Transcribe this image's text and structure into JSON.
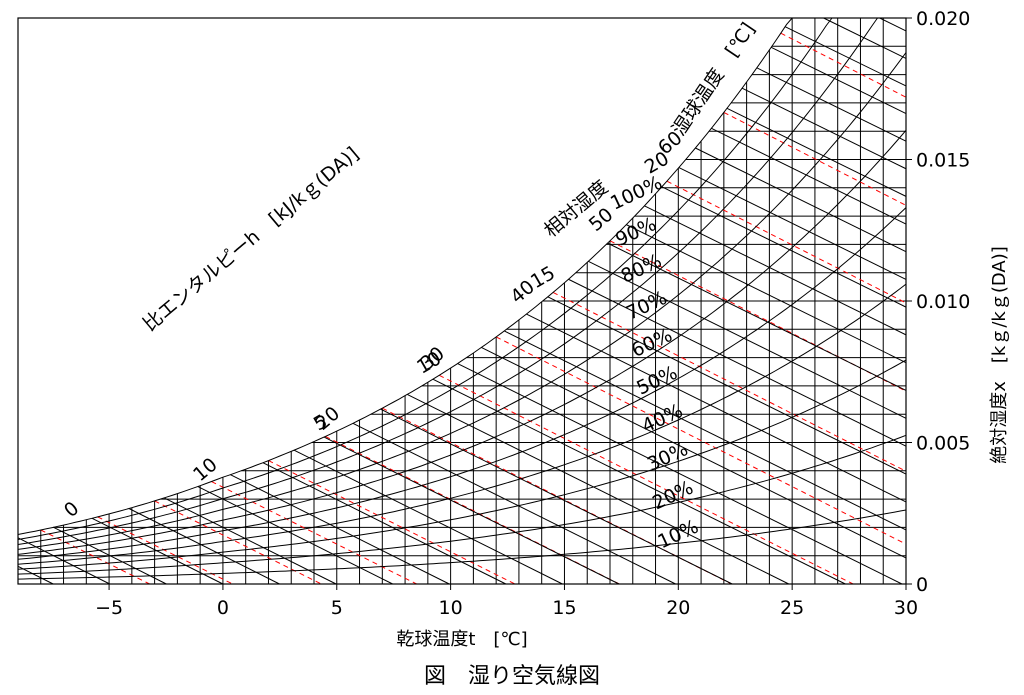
{
  "chart_data": {
    "type": "line",
    "title": "図　湿り空気線図",
    "xlabel": "乾球温度t　[℃]",
    "ylabel": "絶対湿度x　[kｇ/kｇ(DA)]",
    "xlim": [
      -9,
      30
    ],
    "ylim": [
      0,
      0.02
    ],
    "x_ticks": [
      {
        "value": -5,
        "label": "−5"
      },
      {
        "value": 0,
        "label": "0"
      },
      {
        "value": 5,
        "label": "5"
      },
      {
        "value": 10,
        "label": "10"
      },
      {
        "value": 15,
        "label": "15"
      },
      {
        "value": 20,
        "label": "20"
      },
      {
        "value": 25,
        "label": "25"
      },
      {
        "value": 30,
        "label": "30"
      }
    ],
    "y_ticks": [
      {
        "value": 0,
        "label": "0"
      },
      {
        "value": 0.005,
        "label": "0.005"
      },
      {
        "value": 0.01,
        "label": "0.010"
      },
      {
        "value": 0.015,
        "label": "0.015"
      },
      {
        "value": 0.02,
        "label": "0.020"
      }
    ],
    "grid": true,
    "relative_humidity": {
      "title": "相対湿度",
      "levels": [
        100,
        90,
        80,
        70,
        60,
        50,
        40,
        30,
        20,
        10
      ],
      "labels": [
        "100%",
        "90%",
        "80%",
        "70%",
        "60%",
        "50%",
        "40%",
        "30%",
        "20%",
        "10%"
      ]
    },
    "enthalpy": {
      "title": "比エンタルピーh　[kJ/kｇ(DA)]",
      "values": [
        0,
        10,
        20,
        30,
        40,
        50,
        60
      ],
      "labels": [
        "0",
        "10",
        "20",
        "30",
        "40",
        "50",
        "60"
      ]
    },
    "wet_bulb": {
      "title": "湿球温度　[℃]",
      "values": [
        5,
        10,
        15,
        20
      ],
      "labels": [
        "5",
        "10",
        "15",
        "20"
      ]
    }
  }
}
